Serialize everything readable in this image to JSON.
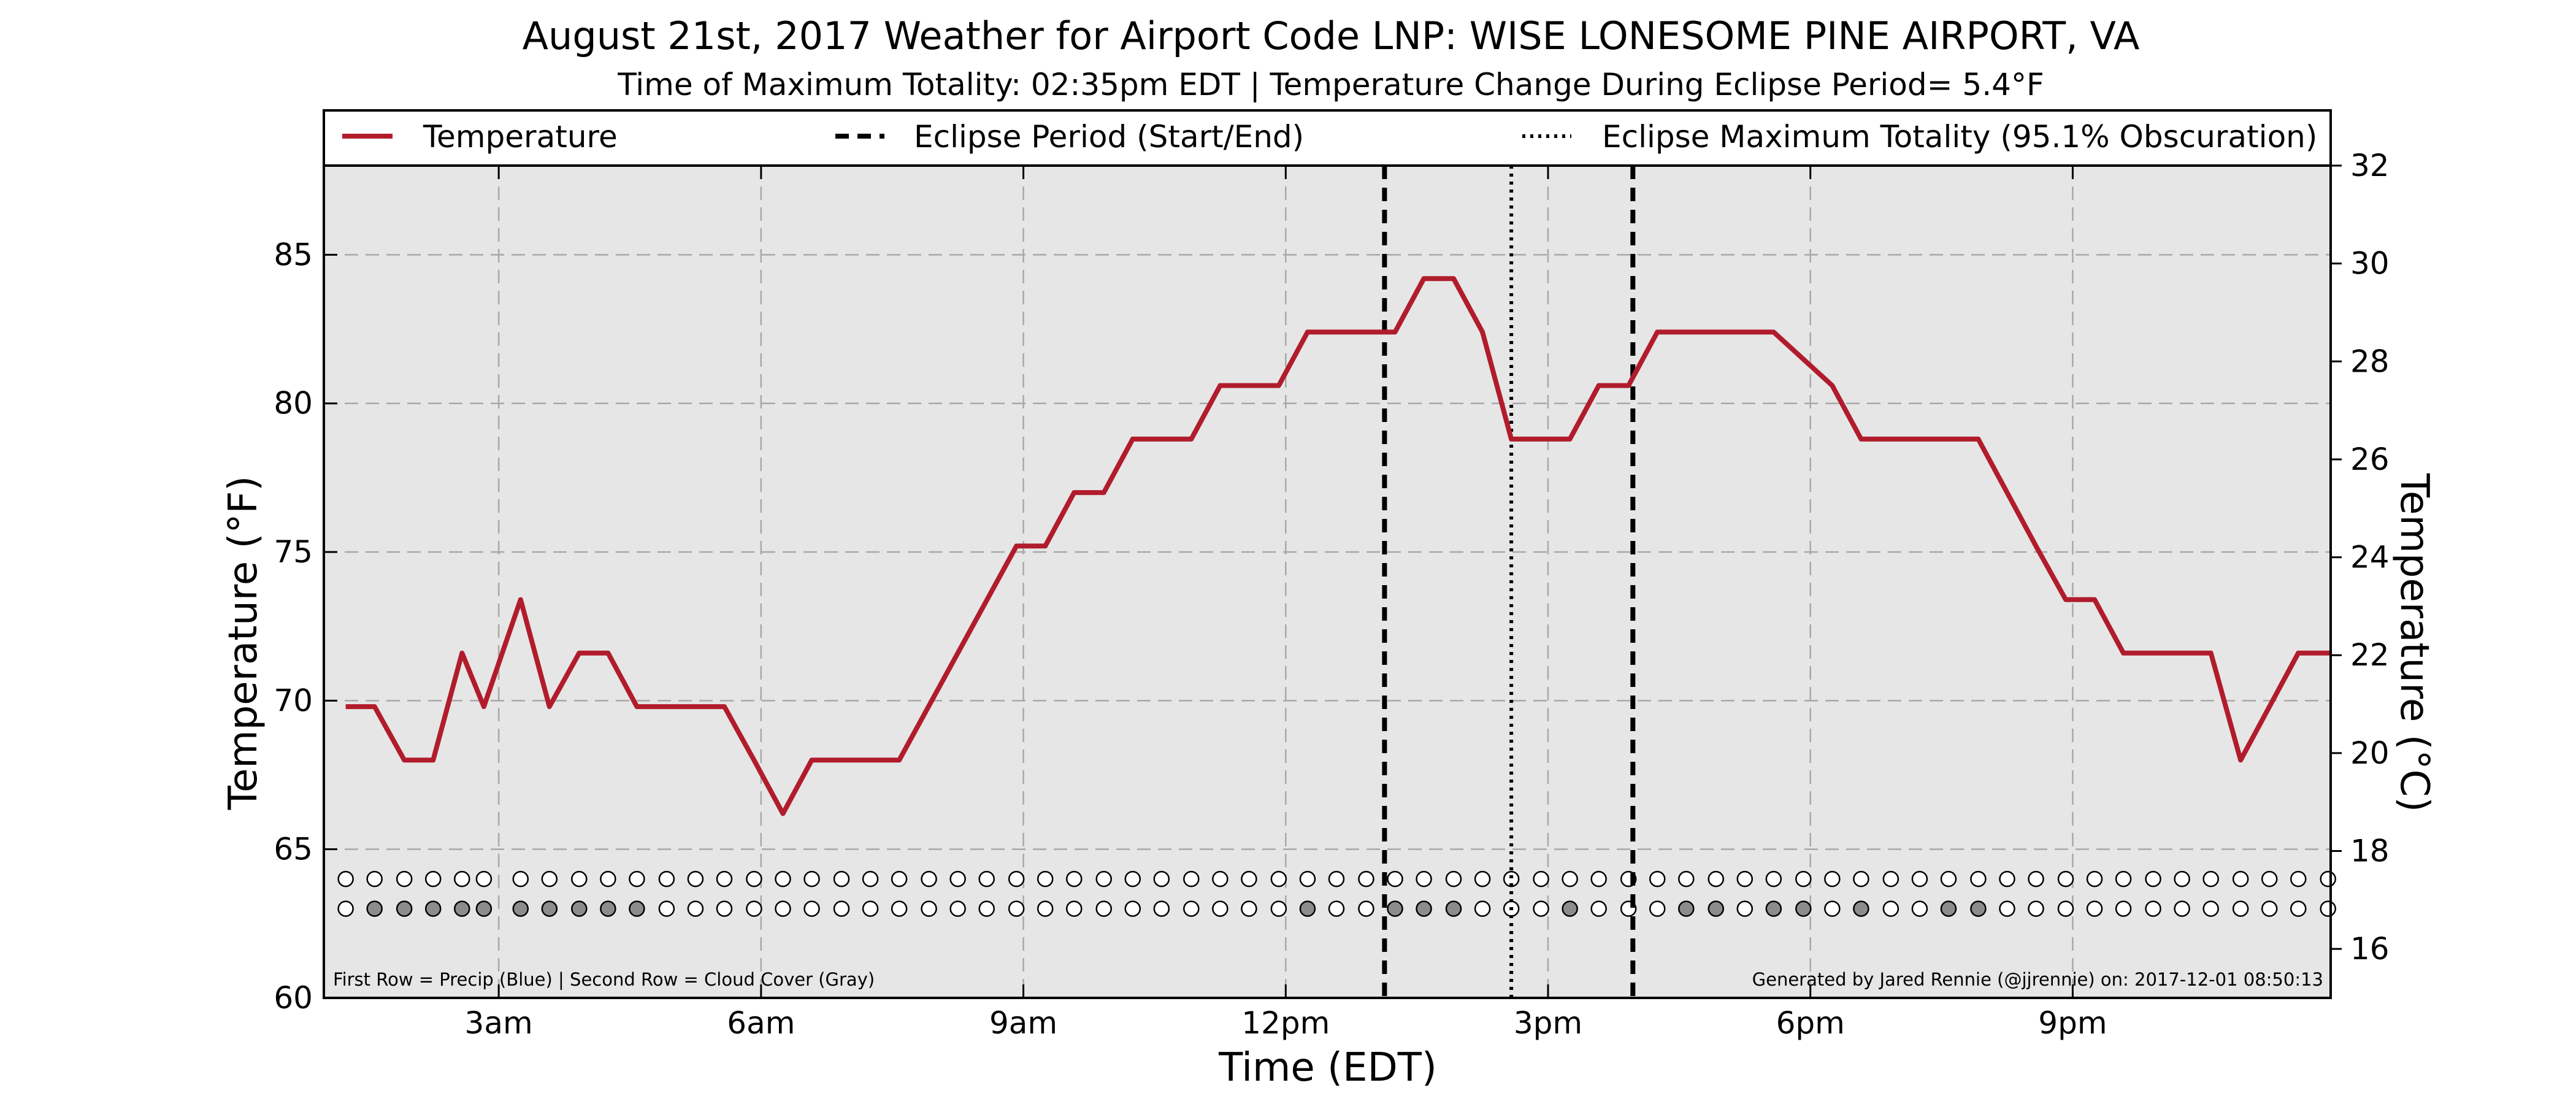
{
  "chart_data": {
    "type": "line",
    "title": "August 21st, 2017 Weather for Airport Code LNP: WISE LONESOME PINE AIRPORT, VA",
    "subtitle": "Time of Maximum Totality: 02:35pm EDT | Temperature Change During Eclipse Period= 5.4$^\\circ$F",
    "subtitle_display": "Time of Maximum Totality: 02:35pm EDT | Temperature Change During Eclipse Period= 5.4°F",
    "xlabel": "Time (EDT)",
    "ylabel": "Temperature ($^\\circ$F)",
    "ylabel_display": "Temperature (°F)",
    "ylabel_right": "Temperature ($^\\circ$C)",
    "ylabel_right_display": "Temperature (°C)",
    "xlim": [
      1.0,
      23.95
    ],
    "ylim": [
      60,
      88
    ],
    "ylim_right": [
      15.0,
      32.0
    ],
    "x_ticks": [
      {
        "value": 3,
        "label": "3am"
      },
      {
        "value": 6,
        "label": "6am"
      },
      {
        "value": 9,
        "label": "9am"
      },
      {
        "value": 12,
        "label": "12pm"
      },
      {
        "value": 15,
        "label": "3pm"
      },
      {
        "value": 18,
        "label": "6pm"
      },
      {
        "value": 21,
        "label": "9pm"
      }
    ],
    "y_ticks": [
      60,
      65,
      70,
      75,
      80,
      85
    ],
    "y_ticks_right": [
      16,
      18,
      20,
      22,
      24,
      26,
      28,
      30,
      32
    ],
    "grid": true,
    "legend": {
      "placement": "top",
      "entries": [
        {
          "label": "Temperature",
          "style": "solid"
        },
        {
          "label": "Eclipse Period (Start/End)",
          "style": "dashed"
        },
        {
          "label": "Eclipse Maximum Totality (95.1% Obscuration)",
          "style": "dotted"
        }
      ]
    },
    "series": [
      {
        "name": "Temperature",
        "color": "#b11c2c",
        "x": [
          1.25,
          1.58,
          1.92,
          2.25,
          2.58,
          2.83,
          3.25,
          3.58,
          3.92,
          4.25,
          4.58,
          5.0,
          5.58,
          5.92,
          6.25,
          6.58,
          7.58,
          8.92,
          9.25,
          9.58,
          9.92,
          10.25,
          10.92,
          11.25,
          11.92,
          12.25,
          12.92,
          13.25,
          13.58,
          13.92,
          14.25,
          14.58,
          15.25,
          15.58,
          15.92,
          16.25,
          16.92,
          17.58,
          18.25,
          18.58,
          19.92,
          20.58,
          20.92,
          21.25,
          21.58,
          22.58,
          22.92,
          23.58,
          23.95
        ],
        "values": [
          69.8,
          69.8,
          68.0,
          68.0,
          71.6,
          69.8,
          73.4,
          69.8,
          71.6,
          71.6,
          69.8,
          69.8,
          69.8,
          68.0,
          66.2,
          68.0,
          68.0,
          75.2,
          75.2,
          77.0,
          77.0,
          78.8,
          78.8,
          80.6,
          80.6,
          82.4,
          82.4,
          82.4,
          84.2,
          84.2,
          82.4,
          78.8,
          78.8,
          80.6,
          80.6,
          82.4,
          82.4,
          82.4,
          80.6,
          78.8,
          78.8,
          75.2,
          73.4,
          73.4,
          71.6,
          71.6,
          68.0,
          71.6,
          71.6
        ]
      }
    ],
    "eclipse_period": {
      "start": 13.13,
      "end": 15.97
    },
    "eclipse_max_totality": 14.58,
    "precip_row_y": 64.0,
    "cloud_row_y": 63.0,
    "precip_marker_times": [
      1.25,
      1.58,
      1.92,
      2.25,
      2.58,
      2.83,
      3.25,
      3.58,
      3.92,
      4.25,
      4.58,
      4.92,
      5.25,
      5.58,
      5.92,
      6.25,
      6.58,
      6.92,
      7.25,
      7.58,
      7.92,
      8.25,
      8.58,
      8.92,
      9.25,
      9.58,
      9.92,
      10.25,
      10.58,
      10.92,
      11.25,
      11.58,
      11.92,
      12.25,
      12.58,
      12.92,
      13.25,
      13.58,
      13.92,
      14.25,
      14.58,
      14.92,
      15.25,
      15.58,
      15.92,
      16.25,
      16.58,
      16.92,
      17.25,
      17.58,
      17.92,
      18.25,
      18.58,
      18.92,
      19.25,
      19.58,
      19.92,
      20.25,
      20.58,
      20.92,
      21.25,
      21.58,
      21.92,
      22.25,
      22.58,
      22.92,
      23.25,
      23.58,
      23.92
    ],
    "cloud_marker_times": [
      1.25,
      1.58,
      1.92,
      2.25,
      2.58,
      2.83,
      3.25,
      3.58,
      3.92,
      4.25,
      4.58,
      4.92,
      5.25,
      5.58,
      5.92,
      6.25,
      6.58,
      6.92,
      7.25,
      7.58,
      7.92,
      8.25,
      8.58,
      8.92,
      9.25,
      9.58,
      9.92,
      10.25,
      10.58,
      10.92,
      11.25,
      11.58,
      11.92,
      12.25,
      12.58,
      12.92,
      13.25,
      13.58,
      13.92,
      14.25,
      14.58,
      14.92,
      15.25,
      15.58,
      15.92,
      16.25,
      16.58,
      16.92,
      17.25,
      17.58,
      17.92,
      18.25,
      18.58,
      18.92,
      19.25,
      19.58,
      19.92,
      20.25,
      20.58,
      20.92,
      21.25,
      21.58,
      21.92,
      22.25,
      22.58,
      22.92,
      23.25,
      23.58,
      23.92
    ],
    "cloud_filled_times": [
      1.58,
      1.92,
      2.25,
      2.58,
      2.83,
      3.25,
      3.58,
      3.92,
      4.25,
      4.58,
      12.25,
      13.25,
      13.58,
      13.92,
      15.25,
      16.58,
      16.92,
      17.58,
      17.92,
      18.58,
      19.58,
      19.92
    ],
    "footnote_left": "First Row = Precip (Blue) | Second Row = Cloud Cover (Gray)",
    "footnote_right": "Generated by Jared Rennie (@jjrennie) on: 2017-12-01 08:50:13"
  },
  "colors": {
    "temperature_line": "#b11c2c",
    "plot_background": "#e6e6e6",
    "grid": "#a8a8a8",
    "cloud_marker_fill": "#8c8c8c",
    "empty_marker_fill": "#ffffff"
  }
}
